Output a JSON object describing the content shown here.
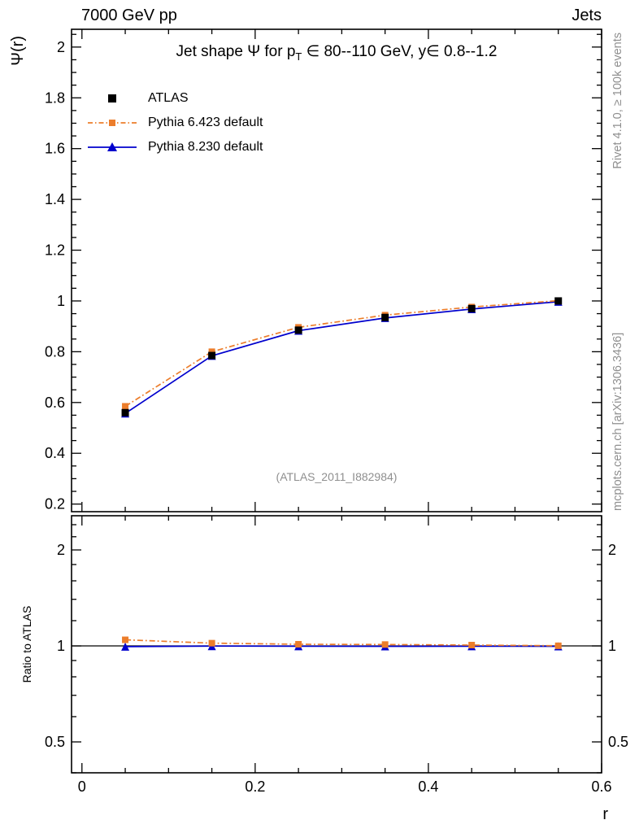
{
  "header": {
    "left": "7000 GeV pp",
    "right": "Jets"
  },
  "title": {
    "pre_sub": "Jet shape Ψ for p",
    "sub": "T",
    "post_sub": " ∈ 80--110 GeV, y∈ 0.8--1.2"
  },
  "watermark": "(ATLAS_2011_I882984)",
  "side_notes": {
    "top": "Rivet 4.1.0, ≥ 100k events",
    "bottom": "mcplots.cern.ch [arXiv:1306.3436]"
  },
  "axes": {
    "main_ylabel": "Ψ(r)",
    "ratio_ylabel": "Ratio to ATLAS",
    "xlabel": "r"
  },
  "legend": {
    "items": [
      {
        "label": "ATLAS"
      },
      {
        "label": "Pythia 6.423 default"
      },
      {
        "label": "Pythia 8.230 default"
      }
    ]
  },
  "colors": {
    "atlas": "#000000",
    "pythia6": "#ec7d2b",
    "pythia8": "#0000cd",
    "gray_text": "#8f8f8f"
  },
  "chart_data": [
    {
      "type": "line",
      "panel": "main",
      "title": "Jet shape Ψ for p_T ∈ 80--110 GeV, y∈ 0.8--1.2",
      "xlabel": "r",
      "ylabel": "Ψ(r)",
      "yscale": "linear",
      "xlim": [
        -0.012,
        0.6
      ],
      "ylim": [
        0.17,
        2.07
      ],
      "x": [
        0.05,
        0.15,
        0.25,
        0.35,
        0.45,
        0.55
      ],
      "series": [
        {
          "name": "ATLAS",
          "color_key": "atlas",
          "line": "none",
          "marker": "square",
          "marker_size": 9,
          "values": [
            0.56,
            0.785,
            0.885,
            0.935,
            0.97,
            1.0
          ]
        },
        {
          "name": "Pythia 6.423 default",
          "color_key": "pythia6",
          "line": "dashdot",
          "marker": "square",
          "marker_size": 8,
          "values": [
            0.585,
            0.8,
            0.896,
            0.944,
            0.976,
            1.001
          ]
        },
        {
          "name": "Pythia 8.230 default",
          "color_key": "pythia8",
          "line": "solid",
          "marker": "triangle",
          "marker_size": 10,
          "values": [
            0.557,
            0.784,
            0.883,
            0.933,
            0.968,
            0.997
          ]
        }
      ],
      "yticks": {
        "major": [
          0.2,
          0.4,
          0.6,
          0.8,
          1.0,
          1.2,
          1.4,
          1.6,
          1.8,
          2.0
        ],
        "labels": [
          "0.2",
          "0.4",
          "0.6",
          "0.8",
          "1",
          "1.2",
          "1.4",
          "1.6",
          "1.8",
          "2"
        ],
        "minor_step": 0.05
      },
      "xticks": {
        "major": [
          0,
          0.2,
          0.4,
          0.6
        ],
        "labels": [
          "0",
          "0.2",
          "0.4",
          "0.6"
        ],
        "minor_step": 0.05
      }
    },
    {
      "type": "line",
      "panel": "ratio",
      "ylabel": "Ratio to ATLAS",
      "yscale": "log",
      "xlim": [
        -0.012,
        0.6
      ],
      "ylim": [
        0.4,
        2.56
      ],
      "reference_line": 1.0,
      "x": [
        0.05,
        0.15,
        0.25,
        0.35,
        0.45,
        0.55
      ],
      "series": [
        {
          "name": "Pythia 6.423 default / ATLAS",
          "color_key": "pythia6",
          "line": "dashdot",
          "marker": "square",
          "marker_size": 8,
          "values": [
            1.045,
            1.02,
            1.012,
            1.01,
            1.006,
            1.001
          ]
        },
        {
          "name": "Pythia 8.230 default / ATLAS",
          "color_key": "pythia8",
          "line": "solid",
          "marker": "triangle",
          "marker_size": 10,
          "values": [
            0.995,
            0.999,
            0.998,
            0.997,
            0.998,
            0.997
          ]
        }
      ],
      "yticks": {
        "major": [
          0.5,
          1,
          2
        ],
        "labels": [
          "0.5",
          "1",
          "2"
        ],
        "minor": [
          0.4,
          0.6,
          0.7,
          0.8,
          0.9,
          1.2,
          1.4,
          1.6,
          1.8,
          2.2,
          2.4
        ]
      },
      "xticks": {
        "major": [
          0,
          0.2,
          0.4,
          0.6
        ],
        "labels": [
          "0",
          "0.2",
          "0.4",
          "0.6"
        ],
        "minor_step": 0.05
      }
    }
  ]
}
